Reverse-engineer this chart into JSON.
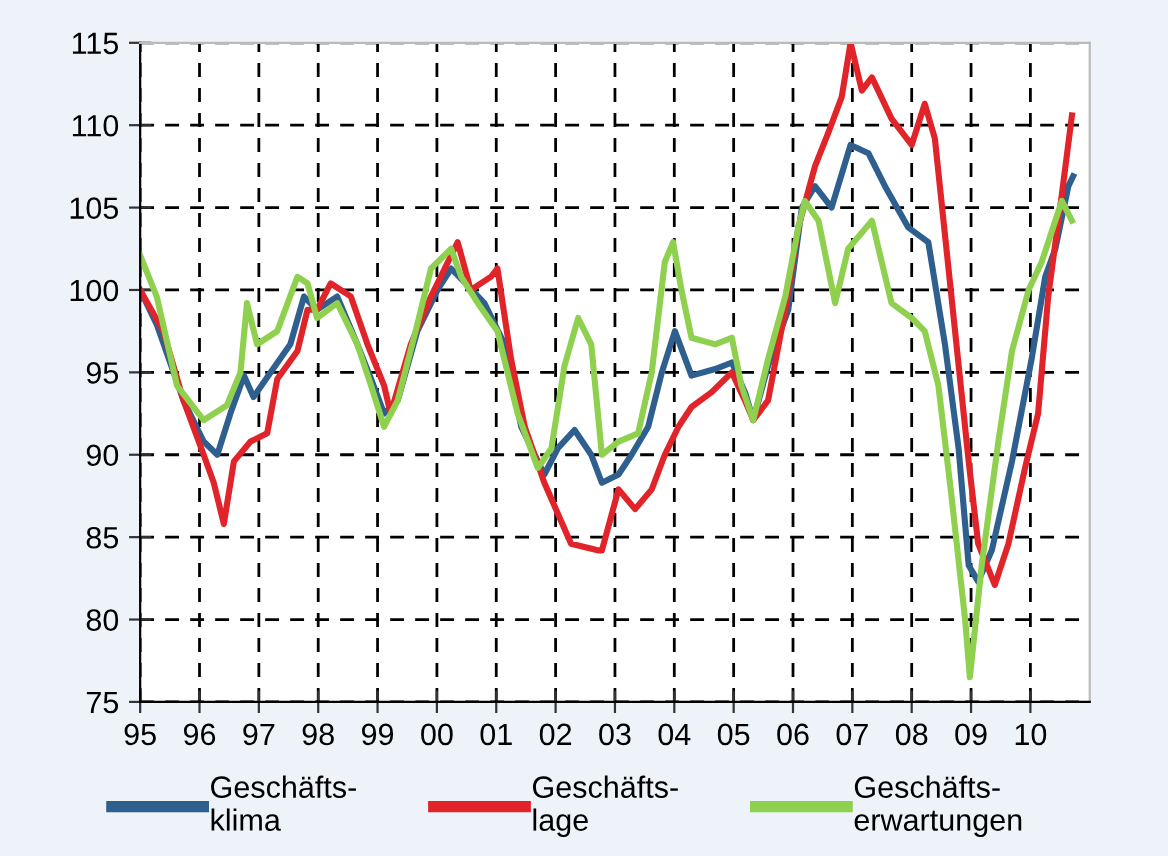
{
  "chart_data": {
    "type": "line",
    "xlim": [
      1995,
      2011
    ],
    "ylim": [
      75,
      115
    ],
    "xticks": [
      {
        "value": 1995,
        "label": "95"
      },
      {
        "value": 1996,
        "label": "96"
      },
      {
        "value": 1997,
        "label": "97"
      },
      {
        "value": 1998,
        "label": "98"
      },
      {
        "value": 1999,
        "label": "99"
      },
      {
        "value": 2000,
        "label": "00"
      },
      {
        "value": 2001,
        "label": "01"
      },
      {
        "value": 2002,
        "label": "02"
      },
      {
        "value": 2003,
        "label": "03"
      },
      {
        "value": 2004,
        "label": "04"
      },
      {
        "value": 2005,
        "label": "05"
      },
      {
        "value": 2006,
        "label": "06"
      },
      {
        "value": 2007,
        "label": "07"
      },
      {
        "value": 2008,
        "label": "08"
      },
      {
        "value": 2009,
        "label": "09"
      },
      {
        "value": 2010,
        "label": "10"
      }
    ],
    "yticks": [
      75,
      80,
      85,
      90,
      95,
      100,
      105,
      110,
      115
    ],
    "grid": true,
    "legend": "bottom",
    "series": [
      {
        "name": "Geschäfts-\nklima",
        "color": "#2e5f8f",
        "x": [
          1995.0,
          1995.28,
          1995.73,
          1996.07,
          1996.3,
          1996.52,
          1996.75,
          1996.91,
          1997.2,
          1997.53,
          1997.76,
          1997.98,
          1998.32,
          1998.66,
          1998.89,
          1999.11,
          1999.34,
          1999.67,
          2000.01,
          2000.24,
          2000.46,
          2000.8,
          2001.14,
          2001.42,
          2001.81,
          2002.04,
          2002.32,
          2002.6,
          2002.78,
          2003.06,
          2003.28,
          2003.56,
          2003.79,
          2004.01,
          2004.29,
          2004.69,
          2004.97,
          2005.19,
          2005.33,
          2005.58,
          2005.92,
          2006.15,
          2006.37,
          2006.65,
          2006.97,
          2007.27,
          2007.55,
          2007.94,
          2008.28,
          2008.56,
          2008.79,
          2008.96,
          2009.12,
          2009.35,
          2009.69,
          2010.02,
          2010.25,
          2010.42,
          2010.64,
          2010.72
        ],
        "values": [
          100,
          97.9,
          93.3,
          90.8,
          90,
          92.5,
          94.8,
          93.5,
          95,
          96.7,
          99.6,
          98.8,
          99.6,
          96.7,
          94.6,
          92.5,
          93.3,
          97.5,
          100,
          101.3,
          100.5,
          99.2,
          96.7,
          91.7,
          88.8,
          90.4,
          91.5,
          90,
          88.3,
          88.8,
          90,
          91.7,
          95,
          97.5,
          94.8,
          95.2,
          95.6,
          93.8,
          92.1,
          95.4,
          98.8,
          105,
          106.3,
          105,
          108.8,
          108.3,
          106.3,
          103.8,
          102.9,
          96.7,
          90.4,
          83.3,
          82.3,
          84.2,
          89.6,
          95.8,
          100.8,
          102.5,
          106.3,
          106.9
        ]
      },
      {
        "name": "Geschäfts-\nlage",
        "color": "#e0242a",
        "x": [
          1995.0,
          1995.39,
          1995.73,
          1996.07,
          1996.24,
          1996.41,
          1996.58,
          1996.86,
          1997.14,
          1997.31,
          1997.65,
          1997.82,
          1997.98,
          1998.21,
          1998.55,
          1998.83,
          1999.11,
          1999.22,
          1999.56,
          1999.9,
          2000.35,
          2000.57,
          2000.91,
          2001.02,
          2001.25,
          2001.48,
          2001.81,
          2002.26,
          2002.71,
          2002.78,
          2003.06,
          2003.34,
          2003.62,
          2003.84,
          2004.07,
          2004.29,
          2004.63,
          2004.97,
          2005.19,
          2005.33,
          2005.58,
          2005.87,
          2006.09,
          2006.37,
          2006.6,
          2006.82,
          2006.97,
          2007.16,
          2007.33,
          2007.66,
          2008.0,
          2008.22,
          2008.39,
          2008.67,
          2008.96,
          2009.12,
          2009.4,
          2009.63,
          2009.91,
          2010.13,
          2010.3,
          2010.53,
          2010.7
        ],
        "values": [
          100,
          97.5,
          93.3,
          90,
          88.3,
          85.8,
          89.6,
          90.8,
          91.3,
          94.6,
          96.3,
          98.8,
          98.8,
          100.4,
          99.6,
          96.7,
          94.2,
          92.5,
          96.7,
          99.6,
          102.9,
          100,
          100.8,
          101.3,
          95.8,
          91.7,
          88.3,
          84.6,
          84.2,
          84.2,
          87.9,
          86.7,
          87.9,
          90,
          91.7,
          92.9,
          93.8,
          95,
          93.3,
          92.1,
          93.3,
          98.8,
          103.8,
          107.5,
          109.6,
          111.7,
          115,
          112.1,
          112.9,
          110.4,
          108.8,
          111.3,
          109.2,
          99.6,
          89.6,
          84.6,
          82.1,
          84.6,
          89.2,
          92.5,
          99.6,
          105.8,
          110.6
        ]
      },
      {
        "name": "Geschäfts-\nerwartungen",
        "color": "#8fd14f",
        "x": [
          1995.0,
          1995.28,
          1995.62,
          1996.07,
          1996.46,
          1996.69,
          1996.8,
          1996.97,
          1997.31,
          1997.65,
          1997.82,
          1997.98,
          1998.32,
          1998.66,
          1998.89,
          1999.11,
          1999.34,
          1999.67,
          1999.9,
          2000.24,
          2000.41,
          2000.69,
          2001.02,
          2001.36,
          2001.7,
          2001.93,
          2002.15,
          2002.38,
          2002.6,
          2002.78,
          2003.06,
          2003.39,
          2003.62,
          2003.84,
          2003.98,
          2004.12,
          2004.29,
          2004.69,
          2004.97,
          2005.13,
          2005.33,
          2005.58,
          2005.87,
          2006.09,
          2006.2,
          2006.43,
          2006.71,
          2006.93,
          2007.33,
          2007.66,
          2008.0,
          2008.22,
          2008.45,
          2008.67,
          2008.9,
          2008.98,
          2009.18,
          2009.46,
          2009.69,
          2009.97,
          2010.19,
          2010.42,
          2010.53,
          2010.7
        ],
        "values": [
          102.1,
          99.6,
          94.2,
          92.1,
          93,
          95,
          99.2,
          96.7,
          97.5,
          100.8,
          100.4,
          98.3,
          99.2,
          96.7,
          94.2,
          91.7,
          93.3,
          97.9,
          101.3,
          102.5,
          100.8,
          99.2,
          97.5,
          92.5,
          89.2,
          90.4,
          95.4,
          98.3,
          96.7,
          90,
          90.8,
          91.3,
          95,
          101.7,
          102.9,
          100,
          97.1,
          96.7,
          97.1,
          94.2,
          92.1,
          95.8,
          99.6,
          103.8,
          105.4,
          104.2,
          99.2,
          102.5,
          104.2,
          99.2,
          98.3,
          97.5,
          94.2,
          87.5,
          80,
          76.5,
          83.3,
          90.8,
          96.3,
          100,
          101.7,
          104.2,
          105.4,
          104.2
        ]
      }
    ]
  }
}
